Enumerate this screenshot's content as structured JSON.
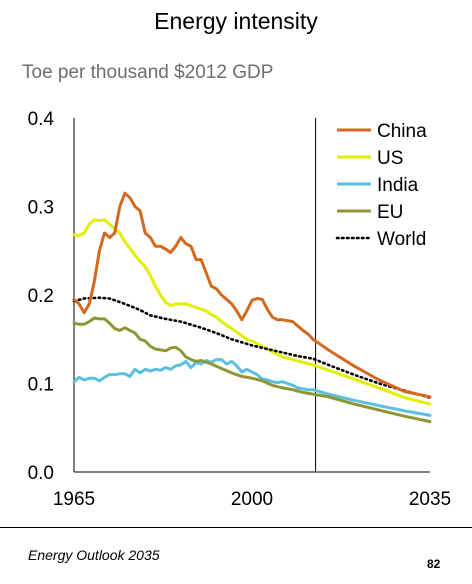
{
  "title": "Energy intensity",
  "subtitle": "Toe per thousand $2012 GDP",
  "footer": {
    "source": "Energy Outlook 2035",
    "page": "82"
  },
  "colors": {
    "China": "#d2691e",
    "US": "#e0f000",
    "India": "#5bc0de",
    "EU": "#8f9633",
    "World": "#000000"
  },
  "chart_data": {
    "type": "line",
    "xlabel": "",
    "ylabel": "Toe per thousand $2012 GDP",
    "xlim": [
      1965,
      2035
    ],
    "ylim": [
      0,
      0.4
    ],
    "x_ticks": [
      "1965",
      "2000",
      "2035"
    ],
    "y_ticks": [
      "0.0",
      "0.1",
      "0.2",
      "0.3",
      "0.4"
    ],
    "divider_x": 2012.5,
    "grid": false,
    "legend": "top-right",
    "series": [
      {
        "name": "China",
        "style": "solid",
        "x": [
          1965,
          1966,
          1967,
          1968,
          1969,
          1970,
          1971,
          1972,
          1973,
          1974,
          1975,
          1976,
          1977,
          1978,
          1979,
          1980,
          1981,
          1982,
          1983,
          1984,
          1985,
          1986,
          1987,
          1988,
          1989,
          1990,
          1991,
          1992,
          1993,
          1994,
          1995,
          1996,
          1997,
          1998,
          1999,
          2000,
          2001,
          2002,
          2003,
          2004,
          2005,
          2006,
          2007,
          2008,
          2009,
          2010,
          2011,
          2012,
          2013,
          2015,
          2020,
          2025,
          2030,
          2035
        ],
        "y": [
          0.195,
          0.19,
          0.18,
          0.19,
          0.215,
          0.25,
          0.27,
          0.265,
          0.27,
          0.3,
          0.315,
          0.31,
          0.3,
          0.295,
          0.27,
          0.265,
          0.255,
          0.255,
          0.252,
          0.248,
          0.255,
          0.265,
          0.258,
          0.255,
          0.24,
          0.24,
          0.225,
          0.21,
          0.207,
          0.2,
          0.195,
          0.19,
          0.182,
          0.172,
          0.182,
          0.194,
          0.196,
          0.195,
          0.184,
          0.175,
          0.172,
          0.172,
          0.171,
          0.17,
          0.165,
          0.16,
          0.156,
          0.15,
          0.146,
          0.138,
          0.12,
          0.104,
          0.091,
          0.085
        ]
      },
      {
        "name": "US",
        "style": "solid",
        "x": [
          1965,
          1966,
          1967,
          1968,
          1969,
          1970,
          1971,
          1972,
          1973,
          1974,
          1975,
          1976,
          1977,
          1978,
          1979,
          1980,
          1981,
          1982,
          1983,
          1984,
          1985,
          1986,
          1987,
          1988,
          1989,
          1990,
          1991,
          1992,
          1993,
          1994,
          1995,
          1996,
          1997,
          1998,
          1999,
          2000,
          2002,
          2004,
          2006,
          2008,
          2010,
          2012,
          2015,
          2020,
          2025,
          2030,
          2035
        ],
        "y": [
          0.268,
          0.267,
          0.27,
          0.28,
          0.285,
          0.284,
          0.285,
          0.28,
          0.275,
          0.27,
          0.26,
          0.253,
          0.245,
          0.238,
          0.232,
          0.222,
          0.21,
          0.2,
          0.192,
          0.188,
          0.19,
          0.19,
          0.19,
          0.188,
          0.186,
          0.184,
          0.182,
          0.178,
          0.175,
          0.17,
          0.166,
          0.162,
          0.158,
          0.154,
          0.15,
          0.148,
          0.142,
          0.136,
          0.13,
          0.127,
          0.124,
          0.121,
          0.115,
          0.105,
          0.095,
          0.084,
          0.077
        ]
      },
      {
        "name": "India",
        "style": "solid",
        "x": [
          1965,
          1966,
          1967,
          1968,
          1969,
          1970,
          1971,
          1972,
          1973,
          1974,
          1975,
          1976,
          1977,
          1978,
          1979,
          1980,
          1981,
          1982,
          1983,
          1984,
          1985,
          1986,
          1987,
          1988,
          1989,
          1990,
          1991,
          1992,
          1993,
          1994,
          1995,
          1996,
          1997,
          1998,
          1999,
          2000,
          2001,
          2002,
          2003,
          2004,
          2005,
          2006,
          2007,
          2008,
          2009,
          2010,
          2011,
          2012,
          2015,
          2020,
          2025,
          2030,
          2035
        ],
        "y": [
          0.102,
          0.107,
          0.104,
          0.106,
          0.106,
          0.103,
          0.107,
          0.11,
          0.11,
          0.111,
          0.111,
          0.108,
          0.116,
          0.112,
          0.116,
          0.114,
          0.116,
          0.115,
          0.118,
          0.116,
          0.12,
          0.121,
          0.125,
          0.118,
          0.124,
          0.122,
          0.126,
          0.124,
          0.127,
          0.127,
          0.122,
          0.125,
          0.12,
          0.113,
          0.116,
          0.113,
          0.11,
          0.105,
          0.104,
          0.102,
          0.101,
          0.102,
          0.1,
          0.098,
          0.095,
          0.094,
          0.093,
          0.093,
          0.088,
          0.081,
          0.075,
          0.069,
          0.064
        ]
      },
      {
        "name": "EU",
        "style": "solid",
        "x": [
          1965,
          1966,
          1967,
          1968,
          1969,
          1970,
          1971,
          1972,
          1973,
          1974,
          1975,
          1976,
          1977,
          1978,
          1979,
          1980,
          1981,
          1982,
          1983,
          1984,
          1985,
          1986,
          1987,
          1988,
          1989,
          1990,
          1992,
          1994,
          1996,
          1998,
          2000,
          2002,
          2004,
          2006,
          2008,
          2010,
          2012,
          2015,
          2020,
          2025,
          2030,
          2035
        ],
        "y": [
          0.168,
          0.167,
          0.167,
          0.17,
          0.174,
          0.173,
          0.173,
          0.168,
          0.162,
          0.16,
          0.163,
          0.16,
          0.157,
          0.15,
          0.148,
          0.142,
          0.139,
          0.138,
          0.137,
          0.14,
          0.141,
          0.137,
          0.13,
          0.127,
          0.125,
          0.126,
          0.122,
          0.117,
          0.112,
          0.108,
          0.106,
          0.103,
          0.098,
          0.095,
          0.093,
          0.09,
          0.088,
          0.085,
          0.077,
          0.07,
          0.063,
          0.057
        ]
      },
      {
        "name": "World",
        "style": "dotted",
        "x": [
          1965,
          1967,
          1970,
          1972,
          1975,
          1978,
          1980,
          1983,
          1986,
          1990,
          1993,
          1996,
          2000,
          2003,
          2006,
          2009,
          2012,
          2015,
          2020,
          2025,
          2030,
          2035
        ],
        "y": [
          0.193,
          0.196,
          0.197,
          0.196,
          0.19,
          0.183,
          0.177,
          0.173,
          0.17,
          0.163,
          0.157,
          0.15,
          0.143,
          0.139,
          0.135,
          0.131,
          0.128,
          0.121,
          0.11,
          0.1,
          0.092,
          0.084
        ]
      }
    ]
  }
}
